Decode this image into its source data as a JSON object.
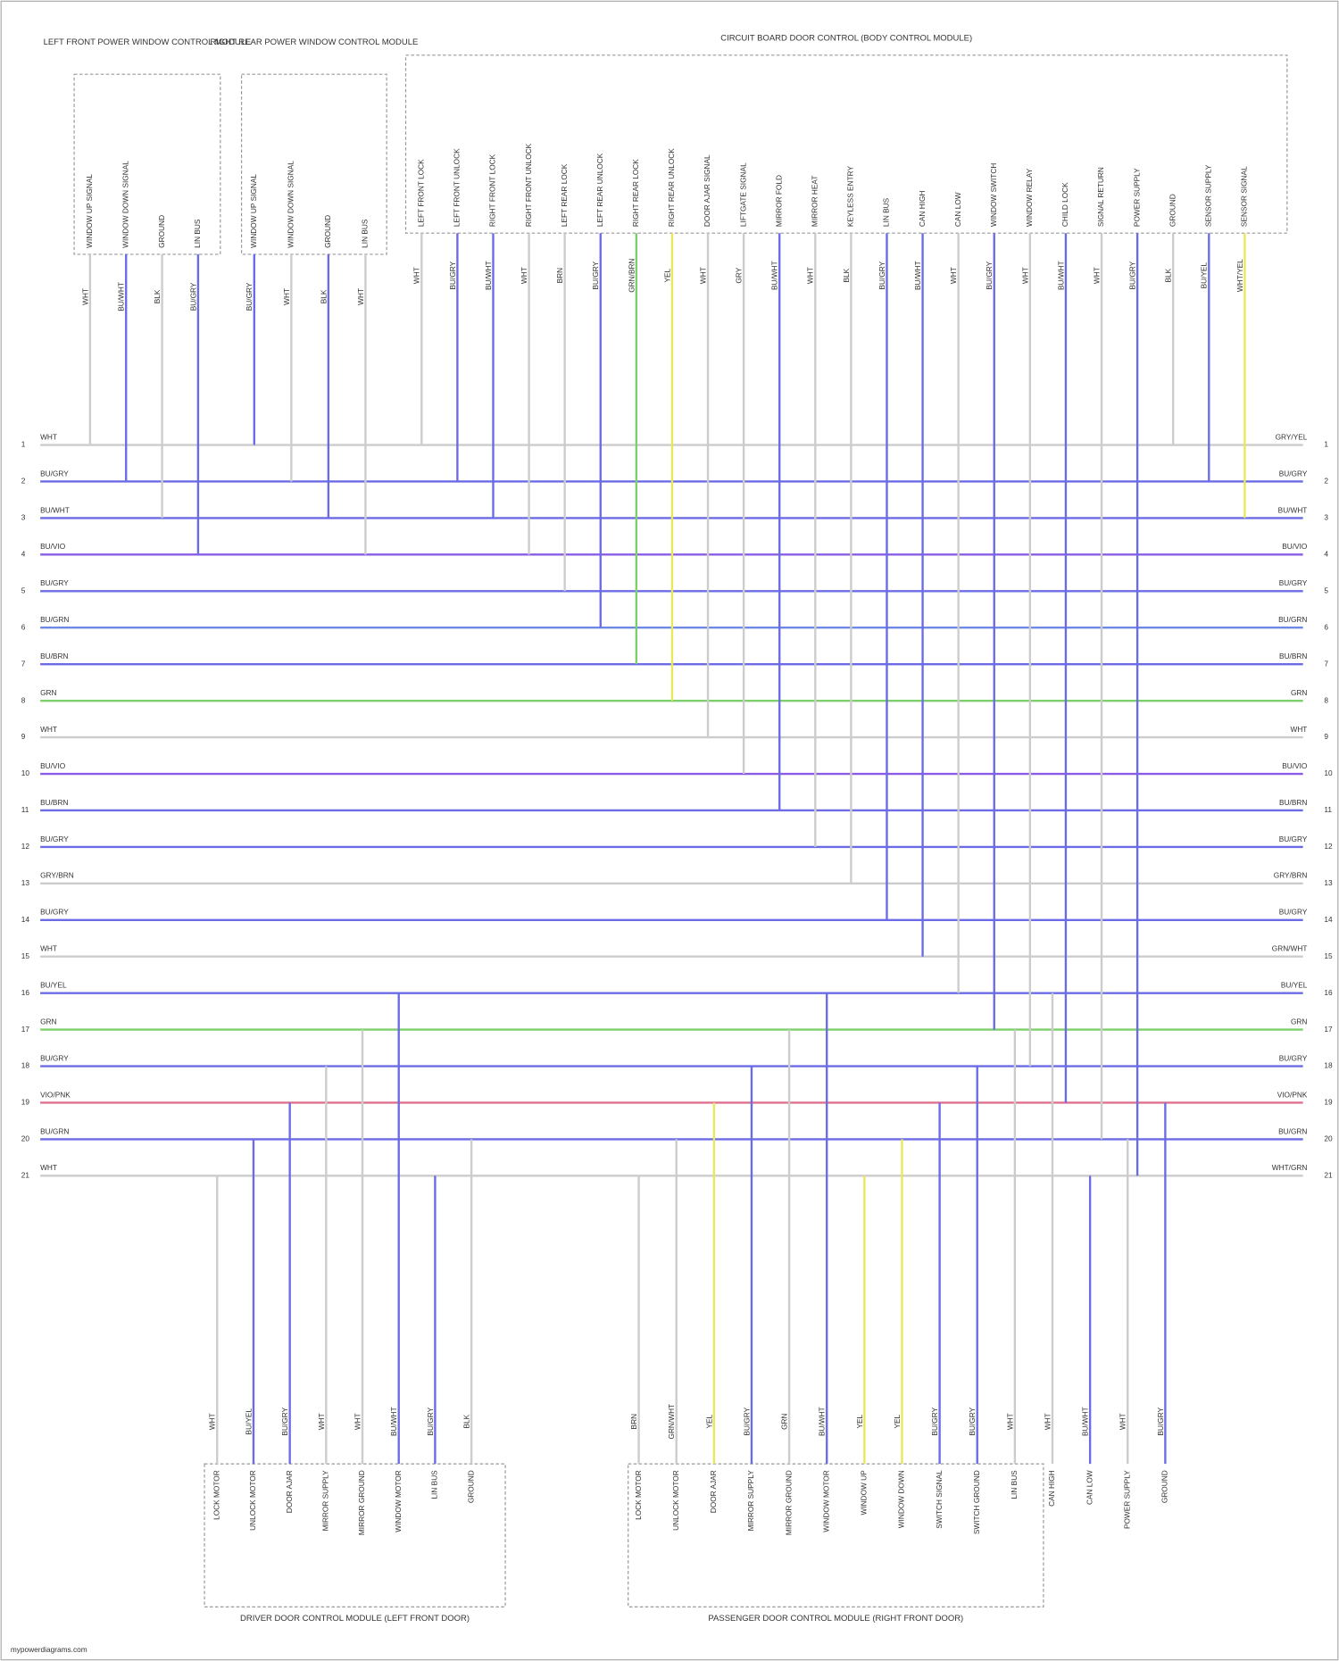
{
  "modules": [
    {
      "title": "LEFT FRONT POWER WINDOW CONTROL MODULE",
      "pins": [
        {
          "name": "WINDOW UP SIGNAL",
          "wire": "WHT",
          "color": "#cccccc"
        },
        {
          "name": "WINDOW DOWN SIGNAL",
          "wire": "BU/WHT",
          "color": "#6b6be6"
        },
        {
          "name": "GROUND",
          "wire": "BLK",
          "color": "#cccccc"
        },
        {
          "name": "LIN BUS",
          "wire": "BU/GRY",
          "color": "#6b6be6"
        }
      ]
    },
    {
      "title": "RIGHT REAR POWER WINDOW CONTROL MODULE",
      "pins": [
        {
          "name": "WINDOW UP SIGNAL",
          "wire": "BU/GRY",
          "color": "#6b6be6"
        },
        {
          "name": "WINDOW DOWN SIGNAL",
          "wire": "WHT",
          "color": "#cccccc"
        },
        {
          "name": "GROUND",
          "wire": "BLK",
          "color": "#6b6be6"
        },
        {
          "name": "LIN BUS",
          "wire": "WHT",
          "color": "#cccccc"
        }
      ]
    },
    {
      "title": "CIRCUIT BOARD DOOR CONTROL (BODY CONTROL MODULE)",
      "pins": [
        {
          "name": "LEFT FRONT LOCK",
          "wire": "WHT",
          "color": "#cccccc"
        },
        {
          "name": "LEFT FRONT UNLOCK",
          "wire": "BU/GRY",
          "color": "#6b6be6"
        },
        {
          "name": "RIGHT FRONT LOCK",
          "wire": "BU/WHT",
          "color": "#6b6be6"
        },
        {
          "name": "RIGHT FRONT UNLOCK",
          "wire": "WHT",
          "color": "#cccccc"
        },
        {
          "name": "LEFT REAR LOCK",
          "wire": "BRN",
          "color": "#cccccc"
        },
        {
          "name": "LEFT REAR UNLOCK",
          "wire": "BU/GRY",
          "color": "#6b6be6"
        },
        {
          "name": "RIGHT REAR LOCK",
          "wire": "GRN/BRN",
          "color": "#7ccf6a"
        },
        {
          "name": "RIGHT REAR UNLOCK",
          "wire": "YEL",
          "color": "#e8e85a"
        },
        {
          "name": "DOOR AJAR SIGNAL",
          "wire": "WHT",
          "color": "#cccccc"
        },
        {
          "name": "LIFTGATE SIGNAL",
          "wire": "GRY",
          "color": "#cccccc"
        },
        {
          "name": "MIRROR FOLD",
          "wire": "BU/WHT",
          "color": "#6b6be6"
        },
        {
          "name": "MIRROR HEAT",
          "wire": "WHT",
          "color": "#cccccc"
        },
        {
          "name": "KEYLESS ENTRY",
          "wire": "BLK",
          "color": "#cccccc"
        },
        {
          "name": "LIN BUS",
          "wire": "BU/GRY",
          "color": "#6b6be6"
        },
        {
          "name": "CAN HIGH",
          "wire": "BU/WHT",
          "color": "#6b6be6"
        },
        {
          "name": "CAN LOW",
          "wire": "WHT",
          "color": "#cccccc"
        },
        {
          "name": "WINDOW SWITCH",
          "wire": "BU/GRY",
          "color": "#6b6be6"
        },
        {
          "name": "WINDOW RELAY",
          "wire": "WHT",
          "color": "#cccccc"
        },
        {
          "name": "CHILD LOCK",
          "wire": "BU/WHT",
          "color": "#6b6be6"
        },
        {
          "name": "SIGNAL RETURN",
          "wire": "WHT",
          "color": "#cccccc"
        },
        {
          "name": "POWER SUPPLY",
          "wire": "BU/GRY",
          "color": "#6b6be6"
        },
        {
          "name": "GROUND",
          "wire": "BLK",
          "color": "#cccccc"
        },
        {
          "name": "SENSOR SUPPLY",
          "wire": "BU/YEL",
          "color": "#6b6be6"
        },
        {
          "name": "SENSOR SIGNAL",
          "wire": "WHT/YEL",
          "color": "#e8e85a"
        }
      ]
    },
    {
      "title": "DRIVER DOOR CONTROL MODULE (LEFT FRONT DOOR)",
      "pins": [
        {
          "name": "LOCK MOTOR",
          "wire": "WHT",
          "color": "#cccccc"
        },
        {
          "name": "UNLOCK MOTOR",
          "wire": "BU/YEL",
          "color": "#6b6be6"
        },
        {
          "name": "DOOR AJAR",
          "wire": "BU/GRY",
          "color": "#6b6be6"
        },
        {
          "name": "MIRROR SUPPLY",
          "wire": "WHT",
          "color": "#cccccc"
        },
        {
          "name": "MIRROR GROUND",
          "wire": "WHT",
          "color": "#cccccc"
        },
        {
          "name": "WINDOW MOTOR",
          "wire": "BU/WHT",
          "color": "#6b6be6"
        },
        {
          "name": "LIN BUS",
          "wire": "BU/GRY",
          "color": "#6b6be6"
        },
        {
          "name": "GROUND",
          "wire": "BLK",
          "color": "#cccccc"
        }
      ]
    },
    {
      "title": "PASSENGER DOOR CONTROL MODULE (RIGHT FRONT DOOR)",
      "pins": [
        {
          "name": "LOCK MOTOR",
          "wire": "BRN",
          "color": "#cccccc"
        },
        {
          "name": "UNLOCK MOTOR",
          "wire": "GRN/WHT",
          "color": "#cccccc"
        },
        {
          "name": "DOOR AJAR",
          "wire": "YEL",
          "color": "#e8e85a"
        },
        {
          "name": "MIRROR SUPPLY",
          "wire": "BU/GRY",
          "color": "#6b6be6"
        },
        {
          "name": "MIRROR GROUND",
          "wire": "GRN",
          "color": "#cccccc"
        },
        {
          "name": "WINDOW MOTOR",
          "wire": "BU/WHT",
          "color": "#6b6be6"
        },
        {
          "name": "WINDOW UP",
          "wire": "YEL",
          "color": "#e8e85a"
        },
        {
          "name": "WINDOW DOWN",
          "wire": "YEL",
          "color": "#e8e85a"
        },
        {
          "name": "SWITCH SIGNAL",
          "wire": "BU/GRY",
          "color": "#6b6be6"
        },
        {
          "name": "SWITCH GROUND",
          "wire": "BU/GRY",
          "color": "#6b6be6"
        },
        {
          "name": "LIN BUS",
          "wire": "WHT",
          "color": "#cccccc"
        },
        {
          "name": "CAN HIGH",
          "wire": "WHT",
          "color": "#cccccc"
        },
        {
          "name": "CAN LOW",
          "wire": "BU/WHT",
          "color": "#6b6be6"
        },
        {
          "name": "POWER SUPPLY",
          "wire": "WHT",
          "color": "#cccccc"
        },
        {
          "name": "GROUND",
          "wire": "BU/GRY",
          "color": "#6b6be6"
        }
      ]
    }
  ],
  "rows": [
    {
      "pin": "1",
      "left": "WHT",
      "right": "GRY/YEL",
      "color": "#cccccc"
    },
    {
      "pin": "2",
      "left": "BU/GRY",
      "right": "BU/GRY",
      "color": "#6b6be6"
    },
    {
      "pin": "3",
      "left": "BU/WHT",
      "right": "BU/WHT",
      "color": "#6b6be6"
    },
    {
      "pin": "4",
      "left": "BU/VIO",
      "right": "BU/VIO",
      "color": "#8a5ce6"
    },
    {
      "pin": "5",
      "left": "BU/GRY",
      "right": "BU/GRY",
      "color": "#6b6be6"
    },
    {
      "pin": "6",
      "left": "BU/GRN",
      "right": "BU/GRN",
      "color": "#6b8ae6"
    },
    {
      "pin": "7",
      "left": "BU/BRN",
      "right": "BU/BRN",
      "color": "#6b6be6"
    },
    {
      "pin": "8",
      "left": "GRN",
      "right": "GRN",
      "color": "#7ccf6a"
    },
    {
      "pin": "9",
      "left": "WHT",
      "right": "WHT",
      "color": "#cccccc"
    },
    {
      "pin": "10",
      "left": "BU/VIO",
      "right": "BU/VIO",
      "color": "#8a5ce6"
    },
    {
      "pin": "11",
      "left": "BU/BRN",
      "right": "BU/BRN",
      "color": "#6b6be6"
    },
    {
      "pin": "12",
      "left": "BU/GRY",
      "right": "BU/GRY",
      "color": "#6b6be6"
    },
    {
      "pin": "13",
      "left": "GRY/BRN",
      "right": "GRY/BRN",
      "color": "#cccccc"
    },
    {
      "pin": "14",
      "left": "BU/GRY",
      "right": "BU/GRY",
      "color": "#6b6be6"
    },
    {
      "pin": "15",
      "left": "WHT",
      "right": "GRN/WHT",
      "color": "#cccccc"
    },
    {
      "pin": "16",
      "left": "BU/YEL",
      "right": "BU/YEL",
      "color": "#6b6be6"
    },
    {
      "pin": "17",
      "left": "GRN",
      "right": "GRN",
      "color": "#7ccf6a"
    },
    {
      "pin": "18",
      "left": "BU/GRY",
      "right": "BU/GRY",
      "color": "#6b6be6"
    },
    {
      "pin": "19",
      "left": "VIO/PNK",
      "right": "VIO/PNK",
      "color": "#e07090"
    },
    {
      "pin": "20",
      "left": "BU/GRN",
      "right": "BU/GRN",
      "color": "#6b6be6"
    },
    {
      "pin": "21",
      "left": "WHT",
      "right": "WHT/GRN",
      "color": "#cccccc"
    }
  ],
  "footer": "mypowerdiagrams.com"
}
